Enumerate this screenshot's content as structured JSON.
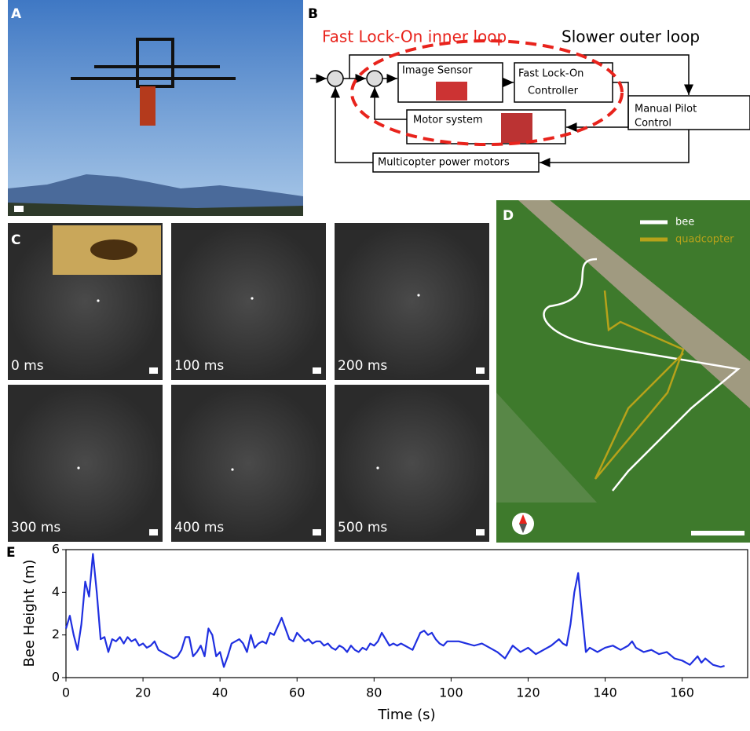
{
  "panels": {
    "a": "A",
    "b": "B",
    "c": "C",
    "d": "D",
    "e": "E"
  },
  "diagram": {
    "inner_loop": "Fast Lock-On inner loop",
    "outer_loop": "Slower outer loop",
    "image_sensor": "Image Sensor",
    "controller": [
      "Fast Lock-On",
      "Controller"
    ],
    "motor_system": "Motor system",
    "pilot": [
      "Manual Pilot",
      "Control"
    ],
    "power_motors": "Multicopter power motors"
  },
  "frames": [
    "0 ms",
    "100 ms",
    "200 ms",
    "300 ms",
    "400 ms",
    "500 ms"
  ],
  "map_legend": [
    "bee",
    "quadcopter"
  ],
  "chart_data": {
    "type": "line",
    "xlabel": "Time (s)",
    "ylabel": "Bee Height (m)",
    "color": "#1f2fe0",
    "xlim": [
      0,
      177
    ],
    "ylim": [
      0,
      6
    ],
    "xticks": [
      0,
      20,
      40,
      60,
      80,
      100,
      120,
      140,
      160
    ],
    "yticks": [
      0,
      2,
      4,
      6
    ],
    "x": [
      0,
      1,
      2,
      3,
      4,
      5,
      6,
      7,
      8,
      9,
      10,
      11,
      12,
      13,
      14,
      15,
      16,
      17,
      18,
      19,
      20,
      21,
      22,
      23,
      24,
      25,
      26,
      27,
      28,
      29,
      30,
      31,
      32,
      33,
      34,
      35,
      36,
      37,
      38,
      39,
      40,
      41,
      42,
      43,
      44,
      45,
      46,
      47,
      48,
      49,
      50,
      51,
      52,
      53,
      54,
      55,
      56,
      57,
      58,
      59,
      60,
      61,
      62,
      63,
      64,
      65,
      66,
      67,
      68,
      69,
      70,
      71,
      72,
      73,
      74,
      75,
      76,
      77,
      78,
      79,
      80,
      81,
      82,
      83,
      84,
      85,
      86,
      87,
      88,
      89,
      90,
      91,
      92,
      93,
      94,
      95,
      96,
      97,
      98,
      99,
      100,
      102,
      104,
      106,
      108,
      110,
      112,
      114,
      116,
      118,
      120,
      122,
      124,
      126,
      128,
      129,
      130,
      131,
      132,
      133,
      134,
      135,
      136,
      138,
      140,
      142,
      144,
      146,
      147,
      148,
      150,
      152,
      154,
      156,
      158,
      160,
      162,
      164,
      165,
      166,
      168,
      170,
      171
    ],
    "values": [
      2.3,
      2.9,
      2.0,
      1.3,
      2.5,
      4.5,
      3.8,
      5.8,
      4.0,
      1.8,
      1.9,
      1.2,
      1.8,
      1.7,
      1.9,
      1.6,
      1.9,
      1.7,
      1.8,
      1.5,
      1.6,
      1.4,
      1.5,
      1.7,
      1.3,
      1.2,
      1.1,
      1.0,
      0.9,
      1.0,
      1.3,
      1.9,
      1.9,
      1.0,
      1.2,
      1.5,
      1.0,
      2.3,
      2.0,
      1.0,
      1.2,
      0.5,
      1.0,
      1.6,
      1.7,
      1.8,
      1.6,
      1.2,
      2.0,
      1.4,
      1.6,
      1.7,
      1.6,
      2.1,
      2.0,
      2.4,
      2.8,
      2.3,
      1.8,
      1.7,
      2.1,
      1.9,
      1.7,
      1.8,
      1.6,
      1.7,
      1.7,
      1.5,
      1.6,
      1.4,
      1.3,
      1.5,
      1.4,
      1.2,
      1.5,
      1.3,
      1.2,
      1.4,
      1.3,
      1.6,
      1.5,
      1.7,
      2.1,
      1.8,
      1.5,
      1.6,
      1.5,
      1.6,
      1.5,
      1.4,
      1.3,
      1.7,
      2.1,
      2.2,
      2.0,
      2.1,
      1.8,
      1.6,
      1.5,
      1.7,
      1.7,
      1.7,
      1.6,
      1.5,
      1.6,
      1.4,
      1.2,
      0.9,
      1.5,
      1.2,
      1.4,
      1.1,
      1.3,
      1.5,
      1.8,
      1.6,
      1.5,
      2.5,
      4.0,
      4.9,
      3.0,
      1.2,
      1.4,
      1.2,
      1.4,
      1.5,
      1.3,
      1.5,
      1.7,
      1.4,
      1.2,
      1.3,
      1.1,
      1.2,
      0.9,
      0.8,
      0.6,
      1.0,
      0.7,
      0.9,
      0.6,
      0.5,
      0.55
    ]
  }
}
